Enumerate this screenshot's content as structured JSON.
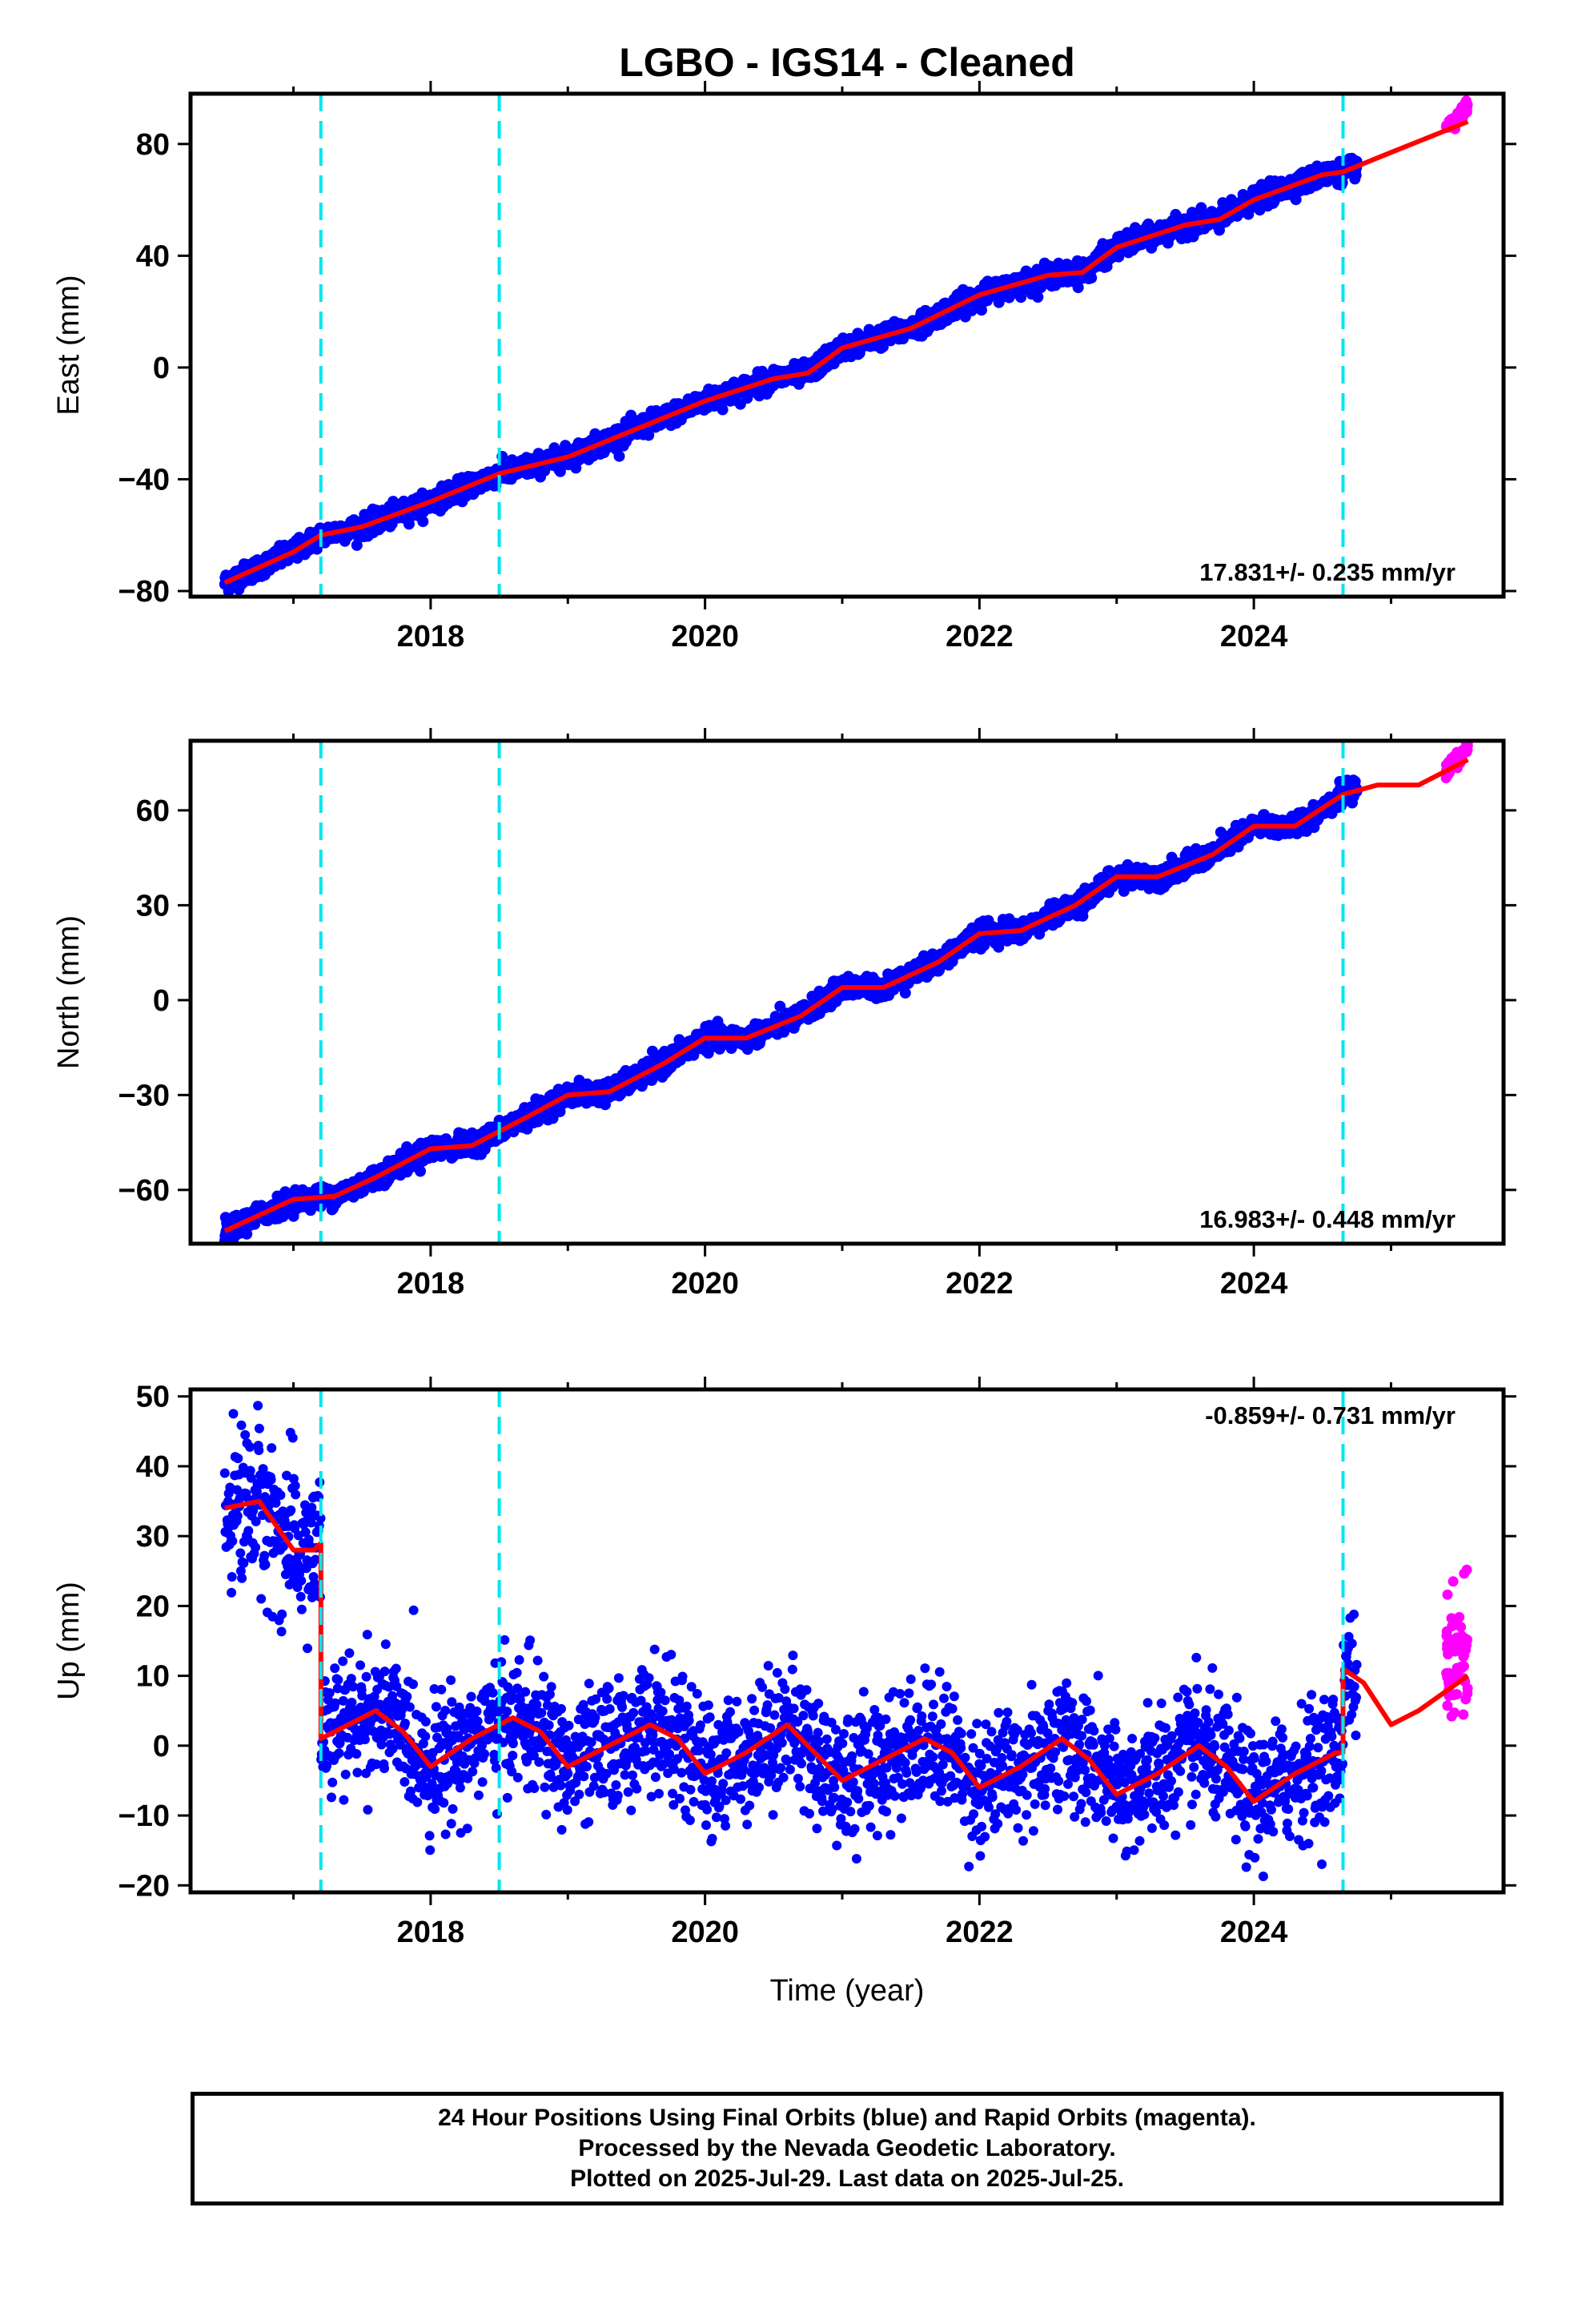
{
  "title": "LGBO  - IGS14 - Cleaned",
  "xlabel": "Time (year)",
  "footer": {
    "lines": [
      "24 Hour Positions Using Final Orbits (blue) and Rapid Orbits (magenta).",
      "Processed by the Nevada Geodetic Laboratory.",
      "Plotted on 2025-Jul-29. Last data on 2025-Jul-25."
    ]
  },
  "colors": {
    "final_orbits": "#0000ff",
    "rapid_orbits": "#ff00ff",
    "model_fit": "#ff0000",
    "equipment_change": "#00e5ee"
  },
  "chart_data": [
    {
      "type": "scatter",
      "ylabel": "East (mm)",
      "rate_label": "17.831+/- 0.235 mm/yr",
      "xlim": [
        2016.25,
        2025.82
      ],
      "ylim": [
        -82,
        98
      ],
      "xticks": [
        2018,
        2020,
        2022,
        2024
      ],
      "yticks": [
        -80,
        -40,
        0,
        40,
        80
      ],
      "steps": [
        2017.2,
        2018.5,
        2024.65
      ],
      "final_range": [
        2016.5,
        2024.75
      ],
      "rapid_range": [
        2025.4,
        2025.56
      ],
      "fit_points": [
        [
          2016.5,
          -77
        ],
        [
          2017.0,
          -66
        ],
        [
          2017.2,
          -60
        ],
        [
          2017.5,
          -57
        ],
        [
          2018.0,
          -48
        ],
        [
          2018.5,
          -38
        ],
        [
          2019.0,
          -32
        ],
        [
          2019.5,
          -22
        ],
        [
          2020.0,
          -12
        ],
        [
          2020.5,
          -4
        ],
        [
          2020.75,
          -2
        ],
        [
          2021.0,
          7
        ],
        [
          2021.5,
          14
        ],
        [
          2022.0,
          26
        ],
        [
          2022.5,
          33
        ],
        [
          2022.75,
          34
        ],
        [
          2023.0,
          43
        ],
        [
          2023.5,
          51
        ],
        [
          2023.75,
          53
        ],
        [
          2024.0,
          60
        ],
        [
          2024.5,
          69
        ],
        [
          2024.65,
          70
        ],
        [
          2025.0,
          77
        ],
        [
          2025.56,
          88
        ]
      ],
      "noise_mm": 1.8,
      "rapid_values": [
        86,
        93
      ]
    },
    {
      "type": "scatter",
      "ylabel": "North (mm)",
      "rate_label": "16.983+/- 0.448 mm/yr",
      "xlim": [
        2016.25,
        2025.82
      ],
      "ylim": [
        -77,
        82
      ],
      "xticks": [
        2018,
        2020,
        2022,
        2024
      ],
      "yticks": [
        -60,
        -30,
        0,
        30,
        60
      ],
      "steps": [
        2017.2,
        2018.5,
        2024.65
      ],
      "final_range": [
        2016.5,
        2024.75
      ],
      "rapid_range": [
        2025.4,
        2025.56
      ],
      "fit_points": [
        [
          2016.5,
          -73
        ],
        [
          2017.0,
          -63
        ],
        [
          2017.3,
          -62
        ],
        [
          2017.6,
          -56
        ],
        [
          2018.0,
          -47
        ],
        [
          2018.3,
          -46
        ],
        [
          2018.7,
          -37
        ],
        [
          2019.0,
          -30
        ],
        [
          2019.3,
          -29
        ],
        [
          2019.7,
          -20
        ],
        [
          2020.0,
          -12
        ],
        [
          2020.3,
          -12
        ],
        [
          2020.7,
          -5
        ],
        [
          2021.0,
          4
        ],
        [
          2021.3,
          4
        ],
        [
          2021.7,
          12
        ],
        [
          2022.0,
          21
        ],
        [
          2022.3,
          22
        ],
        [
          2022.7,
          30
        ],
        [
          2023.0,
          39
        ],
        [
          2023.3,
          39
        ],
        [
          2023.7,
          46
        ],
        [
          2024.0,
          55
        ],
        [
          2024.3,
          55
        ],
        [
          2024.65,
          65
        ],
        [
          2024.9,
          68
        ],
        [
          2025.2,
          68
        ],
        [
          2025.56,
          76
        ]
      ],
      "noise_mm": 1.6,
      "rapid_values": [
        72,
        80
      ]
    },
    {
      "type": "scatter",
      "ylabel": "Up (mm)",
      "rate_label": "-0.859+/- 0.731 mm/yr",
      "xlim": [
        2016.25,
        2025.82
      ],
      "ylim": [
        -21,
        51
      ],
      "xticks": [
        2018,
        2020,
        2022,
        2024
      ],
      "yticks": [
        -20,
        -10,
        0,
        10,
        20,
        30,
        40,
        50
      ],
      "steps": [
        2017.2,
        2018.5,
        2024.65
      ],
      "final_range": [
        2016.5,
        2024.75
      ],
      "rapid_range": [
        2025.4,
        2025.56
      ],
      "fit_points": [
        [
          2016.5,
          34
        ],
        [
          2016.75,
          35
        ],
        [
          2017.0,
          28
        ],
        [
          2017.15,
          28
        ],
        [
          2017.2,
          29
        ],
        [
          2017.2,
          1
        ],
        [
          2017.4,
          3
        ],
        [
          2017.6,
          5
        ],
        [
          2017.8,
          2
        ],
        [
          2018.0,
          -3
        ],
        [
          2018.3,
          1
        ],
        [
          2018.6,
          4
        ],
        [
          2018.8,
          2
        ],
        [
          2019.0,
          -3
        ],
        [
          2019.3,
          0
        ],
        [
          2019.6,
          3
        ],
        [
          2019.8,
          1
        ],
        [
          2020.0,
          -4
        ],
        [
          2020.3,
          -1
        ],
        [
          2020.6,
          3
        ],
        [
          2020.8,
          -1
        ],
        [
          2021.0,
          -5
        ],
        [
          2021.3,
          -2
        ],
        [
          2021.6,
          1
        ],
        [
          2021.8,
          -1
        ],
        [
          2022.0,
          -6
        ],
        [
          2022.3,
          -3
        ],
        [
          2022.6,
          1
        ],
        [
          2022.8,
          -2
        ],
        [
          2023.0,
          -7
        ],
        [
          2023.3,
          -4
        ],
        [
          2023.6,
          0
        ],
        [
          2023.8,
          -3
        ],
        [
          2024.0,
          -8
        ],
        [
          2024.3,
          -4
        ],
        [
          2024.6,
          -1
        ],
        [
          2024.65,
          -1
        ],
        [
          2024.65,
          11
        ],
        [
          2024.8,
          9
        ],
        [
          2025.0,
          3
        ],
        [
          2025.2,
          5
        ],
        [
          2025.56,
          10
        ]
      ],
      "noise_mm": 4.5,
      "rapid_values": [
        1,
        24
      ]
    }
  ]
}
